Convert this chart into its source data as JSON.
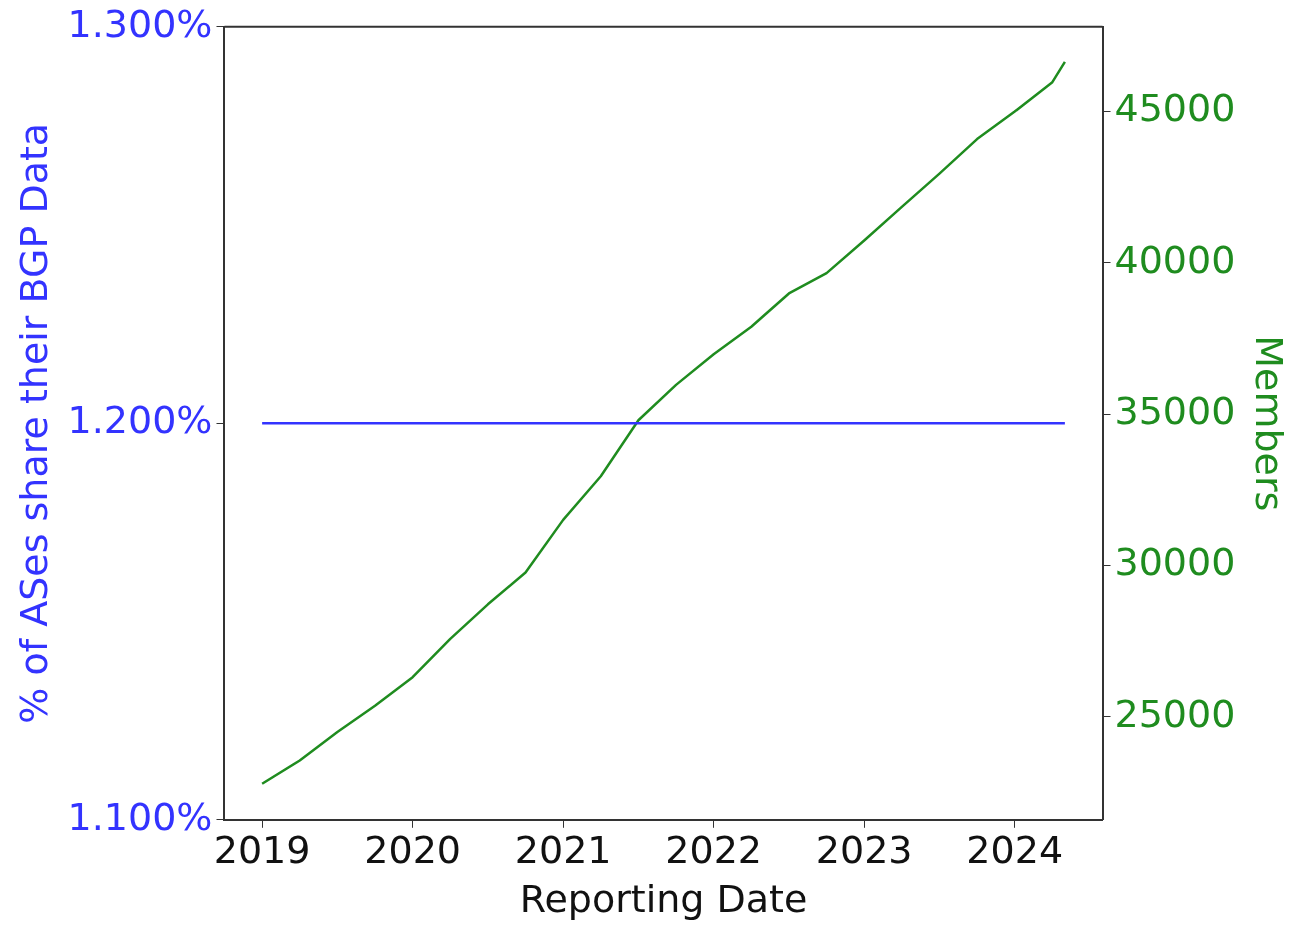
{
  "chart_data": {
    "type": "line",
    "xlabel": "Reporting Date",
    "ylabel": "% of ASes share their BGP Data",
    "y2label": "Members",
    "xlim": [
      "2018-10",
      "2024-08"
    ],
    "xticks": [
      "2019",
      "2020",
      "2021",
      "2022",
      "2023",
      "2024"
    ],
    "ylim": [
      1.1,
      1.3
    ],
    "yticks": [
      {
        "value": 1.1,
        "label": "1.100%"
      },
      {
        "value": 1.2,
        "label": "1.200%"
      },
      {
        "value": 1.3,
        "label": "1.300%"
      }
    ],
    "y2lim": [
      21600,
      47800
    ],
    "y2ticks": [
      25000,
      30000,
      35000,
      40000,
      45000
    ],
    "grid": false,
    "legend": false,
    "marker": "none",
    "line_style": "solid",
    "series": [
      {
        "color": "#3333ff",
        "x": [
          "2019-01",
          "2024-05"
        ],
        "values": [
          1.2,
          1.2
        ]
      },
      {
        "color": "#1f8c1f",
        "axis": "y2",
        "x": [
          "2019-01",
          "2019-04",
          "2019-07",
          "2019-10",
          "2020-01",
          "2020-04",
          "2020-07",
          "2020-10",
          "2021-01",
          "2021-04",
          "2021-07",
          "2021-10",
          "2022-01",
          "2022-04",
          "2022-07",
          "2022-10",
          "2023-01",
          "2023-04",
          "2023-07",
          "2023-10",
          "2024-01",
          "2024-04",
          "2024-05"
        ],
        "values": [
          22790,
          23560,
          24500,
          25370,
          26310,
          27580,
          28720,
          29770,
          31510,
          32950,
          34800,
          35970,
          36980,
          37890,
          38990,
          39660,
          40740,
          41850,
          42950,
          44090,
          45000,
          45970,
          46640
        ]
      }
    ]
  }
}
